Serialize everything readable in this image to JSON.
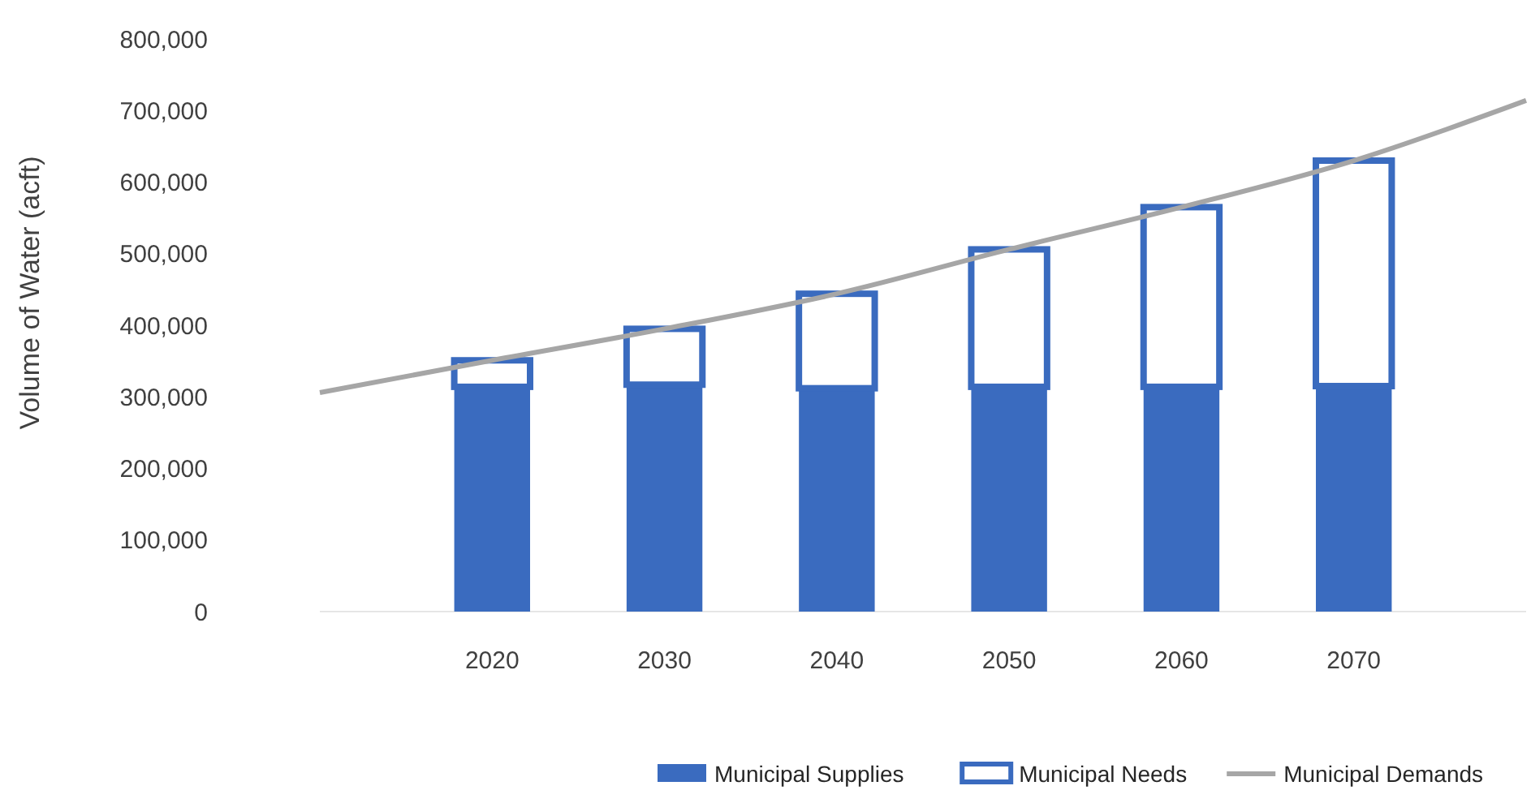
{
  "chart_data": {
    "type": "bar",
    "stacked": true,
    "ylabel": "Volume of Water (acft)",
    "x": [
      2020,
      2030,
      2040,
      2050,
      2060,
      2070
    ],
    "xlim": [
      2010,
      2080
    ],
    "xticks": [
      2020,
      2030,
      2040,
      2050,
      2060,
      2070
    ],
    "ylim": [
      0,
      800000
    ],
    "yticks": [
      {
        "value": 0,
        "label": "0"
      },
      {
        "value": 100000,
        "label": "100,000"
      },
      {
        "value": 200000,
        "label": "200,000"
      },
      {
        "value": 300000,
        "label": "300,000"
      },
      {
        "value": 400000,
        "label": "400,000"
      },
      {
        "value": 500000,
        "label": "500,000"
      },
      {
        "value": 600000,
        "label": "600,000"
      },
      {
        "value": 700000,
        "label": "700,000"
      },
      {
        "value": 800000,
        "label": "800,000"
      }
    ],
    "grid": false,
    "legend": "bottom",
    "series": [
      {
        "name": "Municipal Supplies",
        "color": "#3a6bbf",
        "values": [
          314000,
          317000,
          312000,
          314000,
          314000,
          315000
        ]
      },
      {
        "name": "Municipal Needs",
        "color": "#ffffff",
        "values": [
          37000,
          78000,
          132000,
          192000,
          251000,
          315000
        ]
      },
      {
        "name": "Municipal Demands",
        "type": "line",
        "color": "#a6a6a6",
        "x": [
          2010,
          2020,
          2030,
          2040,
          2050,
          2060,
          2070,
          2080
        ],
        "values": [
          306000,
          351000,
          395000,
          444000,
          506000,
          565000,
          630000,
          714000
        ]
      }
    ]
  }
}
